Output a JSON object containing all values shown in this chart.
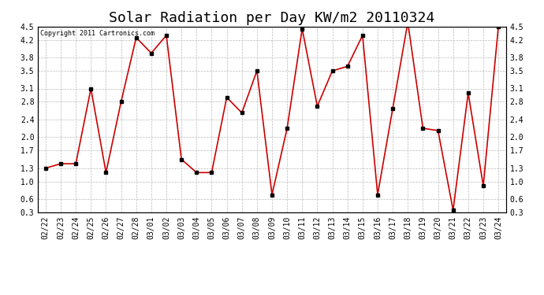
{
  "title": "Solar Radiation per Day KW/m2 20110324",
  "copyright_text": "Copyright 2011 Cartronics.com",
  "dates": [
    "02/22",
    "02/23",
    "02/24",
    "02/25",
    "02/26",
    "02/27",
    "02/28",
    "03/01",
    "03/02",
    "03/03",
    "03/04",
    "03/05",
    "03/06",
    "03/07",
    "03/08",
    "03/09",
    "03/10",
    "03/11",
    "03/12",
    "03/13",
    "03/14",
    "03/15",
    "03/16",
    "03/17",
    "03/18",
    "03/19",
    "03/20",
    "03/21",
    "03/22",
    "03/23",
    "03/24"
  ],
  "values": [
    1.3,
    1.4,
    1.4,
    3.1,
    1.2,
    2.8,
    4.25,
    3.9,
    4.3,
    1.5,
    1.2,
    1.2,
    2.9,
    2.55,
    3.5,
    0.7,
    2.2,
    4.45,
    2.7,
    3.5,
    3.6,
    4.3,
    0.7,
    2.65,
    4.6,
    2.2,
    2.15,
    0.35,
    3.0,
    0.9,
    4.5
  ],
  "line_color": "#cc0000",
  "marker_color": "#000000",
  "bg_color": "#ffffff",
  "grid_color": "#bbbbbb",
  "ylim_min": 0.3,
  "ylim_max": 4.5,
  "yticks": [
    0.3,
    0.6,
    1.0,
    1.3,
    1.7,
    2.0,
    2.4,
    2.8,
    3.1,
    3.5,
    3.8,
    4.2,
    4.5
  ],
  "title_fontsize": 13,
  "tick_fontsize": 7
}
